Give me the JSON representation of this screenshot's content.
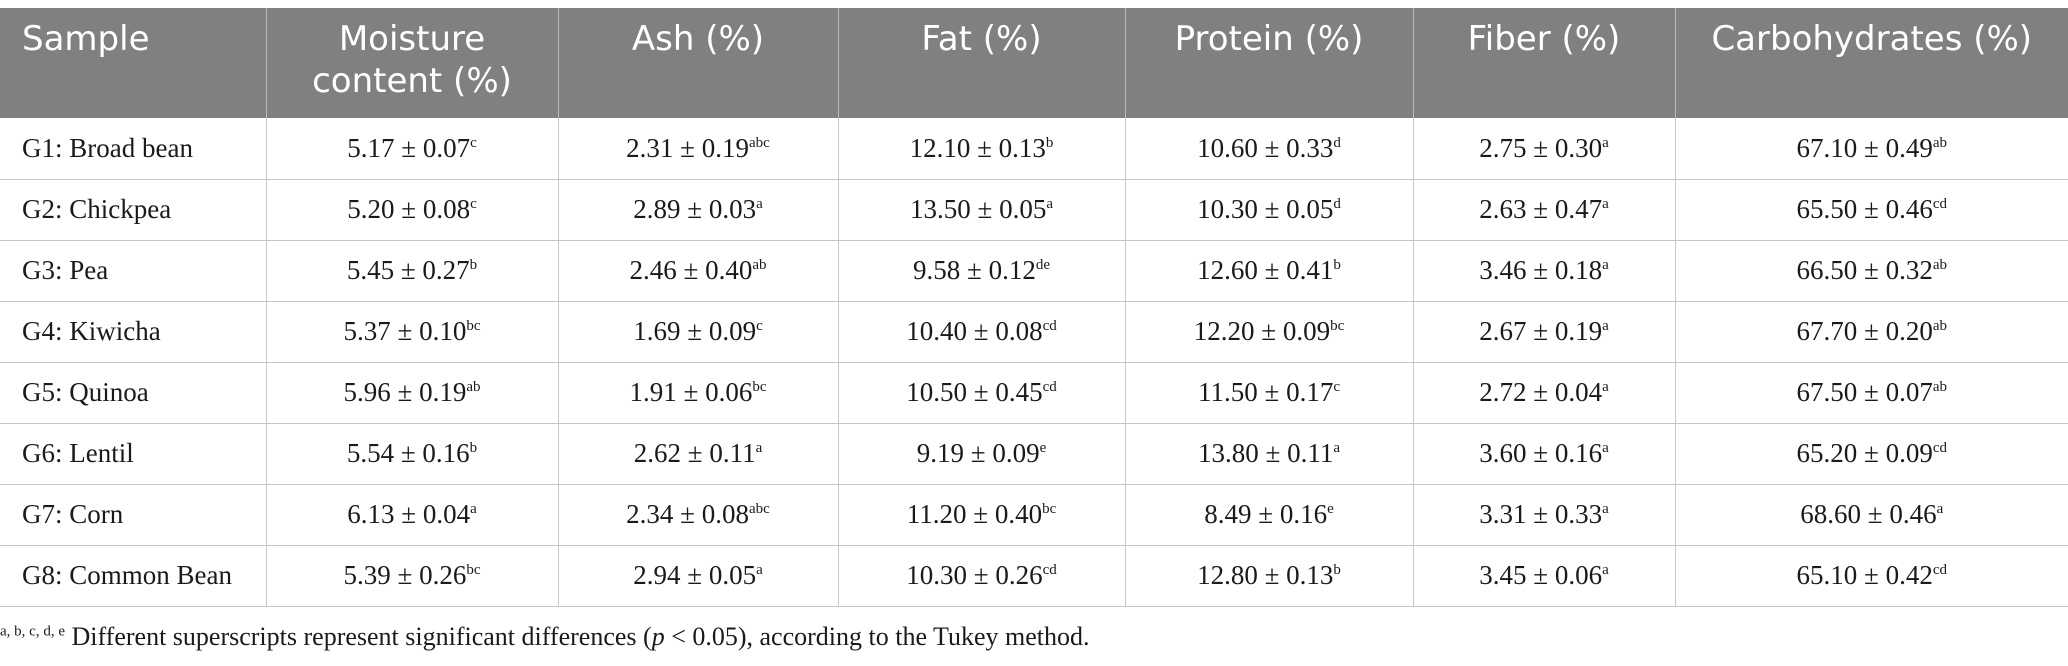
{
  "table": {
    "headers": [
      "Sample",
      "Moisture content (%)",
      "Ash (%)",
      "Fat (%)",
      "Protein (%)",
      "Fiber (%)",
      "Carbohydrates (%)"
    ],
    "rows": [
      [
        {
          "v": "G1: Broad bean",
          "s": ""
        },
        {
          "v": "5.17 ± 0.07",
          "s": "c"
        },
        {
          "v": "2.31 ± 0.19",
          "s": "abc"
        },
        {
          "v": "12.10 ± 0.13",
          "s": "b"
        },
        {
          "v": "10.60 ± 0.33",
          "s": "d"
        },
        {
          "v": "2.75 ± 0.30",
          "s": "a"
        },
        {
          "v": "67.10 ± 0.49",
          "s": "ab"
        }
      ],
      [
        {
          "v": "G2: Chickpea",
          "s": ""
        },
        {
          "v": "5.20 ± 0.08",
          "s": "c"
        },
        {
          "v": "2.89 ± 0.03",
          "s": "a"
        },
        {
          "v": "13.50 ± 0.05",
          "s": "a"
        },
        {
          "v": "10.30 ± 0.05",
          "s": "d"
        },
        {
          "v": "2.63 ± 0.47",
          "s": "a"
        },
        {
          "v": "65.50 ± 0.46",
          "s": "cd"
        }
      ],
      [
        {
          "v": "G3: Pea",
          "s": ""
        },
        {
          "v": "5.45 ± 0.27",
          "s": "b"
        },
        {
          "v": "2.46 ± 0.40",
          "s": "ab"
        },
        {
          "v": "9.58 ± 0.12",
          "s": "de"
        },
        {
          "v": "12.60 ± 0.41",
          "s": "b"
        },
        {
          "v": "3.46 ± 0.18",
          "s": "a"
        },
        {
          "v": "66.50 ± 0.32",
          "s": "ab"
        }
      ],
      [
        {
          "v": "G4: Kiwicha",
          "s": ""
        },
        {
          "v": "5.37 ± 0.10",
          "s": "bc"
        },
        {
          "v": "1.69 ± 0.09",
          "s": "c"
        },
        {
          "v": "10.40 ± 0.08",
          "s": "cd"
        },
        {
          "v": "12.20 ± 0.09",
          "s": "bc"
        },
        {
          "v": "2.67 ± 0.19",
          "s": "a"
        },
        {
          "v": "67.70 ± 0.20",
          "s": "ab"
        }
      ],
      [
        {
          "v": "G5: Quinoa",
          "s": ""
        },
        {
          "v": "5.96 ± 0.19",
          "s": "ab"
        },
        {
          "v": "1.91 ± 0.06",
          "s": "bc"
        },
        {
          "v": "10.50 ± 0.45",
          "s": "cd"
        },
        {
          "v": "11.50 ± 0.17",
          "s": "c"
        },
        {
          "v": "2.72 ± 0.04",
          "s": "a"
        },
        {
          "v": "67.50 ± 0.07",
          "s": "ab"
        }
      ],
      [
        {
          "v": "G6: Lentil",
          "s": ""
        },
        {
          "v": "5.54 ± 0.16",
          "s": "b"
        },
        {
          "v": "2.62 ± 0.11",
          "s": "a"
        },
        {
          "v": "9.19 ± 0.09",
          "s": "e"
        },
        {
          "v": "13.80 ± 0.11",
          "s": "a"
        },
        {
          "v": "3.60 ± 0.16",
          "s": "a"
        },
        {
          "v": "65.20 ± 0.09",
          "s": "cd"
        }
      ],
      [
        {
          "v": "G7: Corn",
          "s": ""
        },
        {
          "v": "6.13 ± 0.04",
          "s": "a"
        },
        {
          "v": "2.34 ± 0.08",
          "s": "abc"
        },
        {
          "v": "11.20 ± 0.40",
          "s": "bc"
        },
        {
          "v": "8.49 ± 0.16",
          "s": "e"
        },
        {
          "v": "3.31 ± 0.33",
          "s": "a"
        },
        {
          "v": "68.60 ± 0.46",
          "s": "a"
        }
      ],
      [
        {
          "v": "G8: Common Bean",
          "s": ""
        },
        {
          "v": "5.39 ± 0.26",
          "s": "bc"
        },
        {
          "v": "2.94 ± 0.05",
          "s": "a"
        },
        {
          "v": "10.30 ± 0.26",
          "s": "cd"
        },
        {
          "v": "12.80 ± 0.13",
          "s": "b"
        },
        {
          "v": "3.45 ± 0.06",
          "s": "a"
        },
        {
          "v": "65.10 ± 0.42",
          "s": "cd"
        }
      ]
    ]
  },
  "footnote": {
    "superscript": "a, b, c, d, e",
    "text_before": " Different superscripts represent significant differences (",
    "p_symbol": "p",
    "text_after": " < 0.05), according to the Tukey method."
  },
  "colors": {
    "header_bg": "#7f817f",
    "header_text": "#ffffff",
    "grid_lines": "#c6c6c6"
  }
}
